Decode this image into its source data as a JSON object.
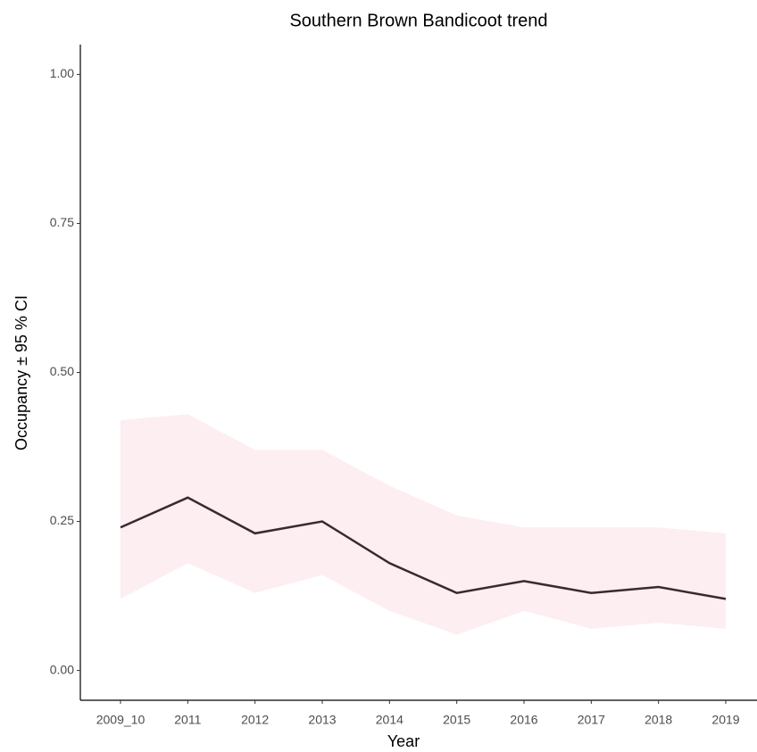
{
  "chart_data": {
    "type": "line",
    "title": "Southern Brown Bandicoot trend",
    "xlabel": "Year",
    "ylabel": "Occupancy ± 95 % CI",
    "categories": [
      "2009_10",
      "2011",
      "2012",
      "2013",
      "2014",
      "2015",
      "2016",
      "2017",
      "2018",
      "2019"
    ],
    "values": [
      0.24,
      0.29,
      0.23,
      0.25,
      0.18,
      0.13,
      0.15,
      0.13,
      0.14,
      0.12
    ],
    "ci_upper": [
      0.42,
      0.43,
      0.37,
      0.37,
      0.31,
      0.26,
      0.24,
      0.24,
      0.24,
      0.23
    ],
    "ci_lower": [
      0.12,
      0.18,
      0.13,
      0.16,
      0.1,
      0.06,
      0.1,
      0.07,
      0.08,
      0.07
    ],
    "color": "#3a2a2e",
    "ribbon_color": "#fdeef1",
    "ylim": [
      -0.05,
      1.05
    ],
    "yticks": [
      {
        "value": 0,
        "label": "0.00"
      },
      0.25,
      {
        "value": 0.5,
        "label": "0.50"
      },
      0.75,
      {
        "value": 1,
        "label": "1.00"
      }
    ]
  }
}
